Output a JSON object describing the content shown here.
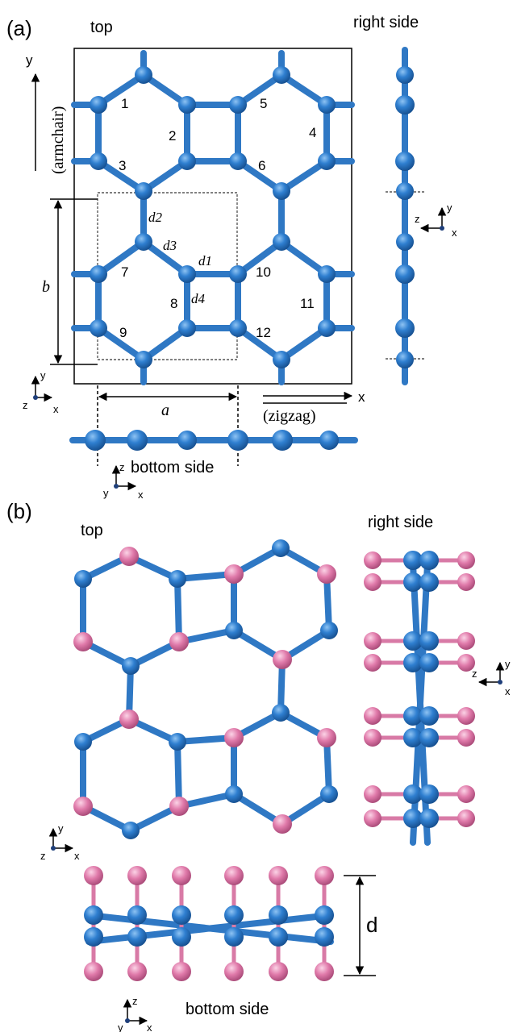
{
  "colors": {
    "blue_atom": "#2f78c4",
    "pink_atom": "#e07aaa",
    "ink": "#000000"
  },
  "panel_a": {
    "label": "(a)",
    "top": "top",
    "right_side": "right side",
    "bottom_side": "bottom side",
    "armchair": "(armchair)",
    "zigzag": "(zigzag)",
    "axis_x": "x",
    "axis_y": "y",
    "lattice_a": "a",
    "lattice_b": "b",
    "bond_labels": [
      "d2",
      "d3",
      "d1",
      "d4"
    ],
    "atom_numbers": [
      "1",
      "2",
      "3",
      "4",
      "5",
      "6",
      "7",
      "8",
      "9",
      "10",
      "11",
      "12"
    ],
    "triad_top": [
      "z",
      "y",
      "x"
    ],
    "triad_right": [
      "z",
      "y",
      "x"
    ],
    "triad_bottom": [
      "y",
      "z",
      "x"
    ]
  },
  "panel_b": {
    "label": "(b)",
    "top": "top",
    "right_side": "right side",
    "bottom_side": "bottom side",
    "thickness_label": "d",
    "triad_top": [
      "z",
      "y",
      "x"
    ],
    "triad_right": [
      "z",
      "y",
      "x"
    ],
    "triad_bottom": [
      "y",
      "z",
      "x"
    ]
  }
}
